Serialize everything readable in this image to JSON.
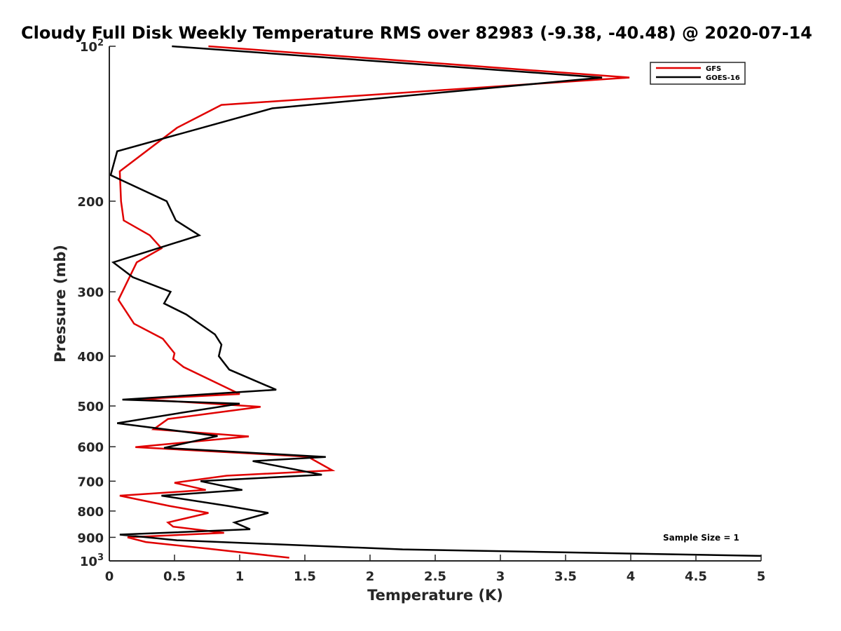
{
  "chart_data": {
    "type": "line",
    "title": "Cloudy Full Disk Weekly Temperature RMS over 82983 (-9.38, -40.48) @ 2020-07-14",
    "xlabel": "Temperature (K)",
    "ylabel": "Pressure (mb)",
    "xlim": [
      0,
      5
    ],
    "ylim": [
      100,
      1000
    ],
    "y_scale": "log",
    "y_reversed": true,
    "grid": false,
    "legend_position": "top-right",
    "x_ticks": [
      "0",
      "0.5",
      "1",
      "1.5",
      "2",
      "2.5",
      "3",
      "3.5",
      "4",
      "4.5",
      "5"
    ],
    "x_tick_values": [
      0,
      0.5,
      1,
      1.5,
      2,
      2.5,
      3,
      3.5,
      4,
      4.5,
      5
    ],
    "y_ticks": [
      {
        "value": 100,
        "label": "10",
        "sup": "2"
      },
      {
        "value": 200,
        "label": "200",
        "sup": ""
      },
      {
        "value": 300,
        "label": "300",
        "sup": ""
      },
      {
        "value": 400,
        "label": "400",
        "sup": ""
      },
      {
        "value": 500,
        "label": "500",
        "sup": ""
      },
      {
        "value": 600,
        "label": "600",
        "sup": ""
      },
      {
        "value": 700,
        "label": "700",
        "sup": ""
      },
      {
        "value": 800,
        "label": "800",
        "sup": ""
      },
      {
        "value": 900,
        "label": "900",
        "sup": ""
      },
      {
        "value": 1000,
        "label": "10",
        "sup": "3"
      }
    ],
    "annotation": "Sample Size = 1",
    "series": [
      {
        "name": "GFS",
        "color": "#e00000",
        "points": [
          [
            0.76,
            100
          ],
          [
            3.99,
            115
          ],
          [
            0.86,
            130
          ],
          [
            0.52,
            144
          ],
          [
            0.08,
            175
          ],
          [
            0.09,
            200
          ],
          [
            0.11,
            218
          ],
          [
            0.31,
            233
          ],
          [
            0.4,
            247
          ],
          [
            0.21,
            263
          ],
          [
            0.07,
            311
          ],
          [
            0.19,
            346
          ],
          [
            0.41,
            370
          ],
          [
            0.5,
            395
          ],
          [
            0.49,
            405
          ],
          [
            0.57,
            420
          ],
          [
            1.0,
            474
          ],
          [
            0.23,
            485
          ],
          [
            1.16,
            502
          ],
          [
            0.45,
            530
          ],
          [
            0.34,
            555
          ],
          [
            1.07,
            573
          ],
          [
            0.2,
            601
          ],
          [
            1.56,
            628
          ],
          [
            1.55,
            633
          ],
          [
            1.71,
            667
          ],
          [
            0.9,
            683
          ],
          [
            0.5,
            705
          ],
          [
            0.74,
            728
          ],
          [
            0.08,
            747
          ],
          [
            0.46,
            782
          ],
          [
            0.76,
            807
          ],
          [
            0.45,
            842
          ],
          [
            0.49,
            858
          ],
          [
            0.88,
            882
          ],
          [
            0.14,
            900
          ],
          [
            0.28,
            919
          ],
          [
            0.76,
            947
          ],
          [
            1.38,
            986
          ]
        ]
      },
      {
        "name": "GOES-16",
        "color": "#000000",
        "points": [
          [
            0.48,
            100
          ],
          [
            3.78,
            115
          ],
          [
            1.25,
            132
          ],
          [
            0.06,
            160
          ],
          [
            0.01,
            178
          ],
          [
            0.44,
            200
          ],
          [
            0.51,
            218
          ],
          [
            0.69,
            233
          ],
          [
            0.03,
            263
          ],
          [
            0.18,
            281
          ],
          [
            0.47,
            300
          ],
          [
            0.42,
            316
          ],
          [
            0.59,
            332
          ],
          [
            0.81,
            363
          ],
          [
            0.86,
            380
          ],
          [
            0.84,
            400
          ],
          [
            0.92,
            425
          ],
          [
            1.28,
            465
          ],
          [
            0.1,
            486
          ],
          [
            1.0,
            495
          ],
          [
            0.56,
            515
          ],
          [
            0.06,
            540
          ],
          [
            0.83,
            572
          ],
          [
            0.42,
            603
          ],
          [
            1.66,
            628
          ],
          [
            1.1,
            640
          ],
          [
            1.63,
            680
          ],
          [
            0.7,
            700
          ],
          [
            1.02,
            728
          ],
          [
            0.4,
            747
          ],
          [
            0.91,
            782
          ],
          [
            1.22,
            807
          ],
          [
            0.96,
            842
          ],
          [
            1.08,
            868
          ],
          [
            0.08,
            889
          ],
          [
            0.52,
            912
          ],
          [
            2.25,
            950
          ],
          [
            5.0,
            978
          ]
        ]
      }
    ]
  }
}
